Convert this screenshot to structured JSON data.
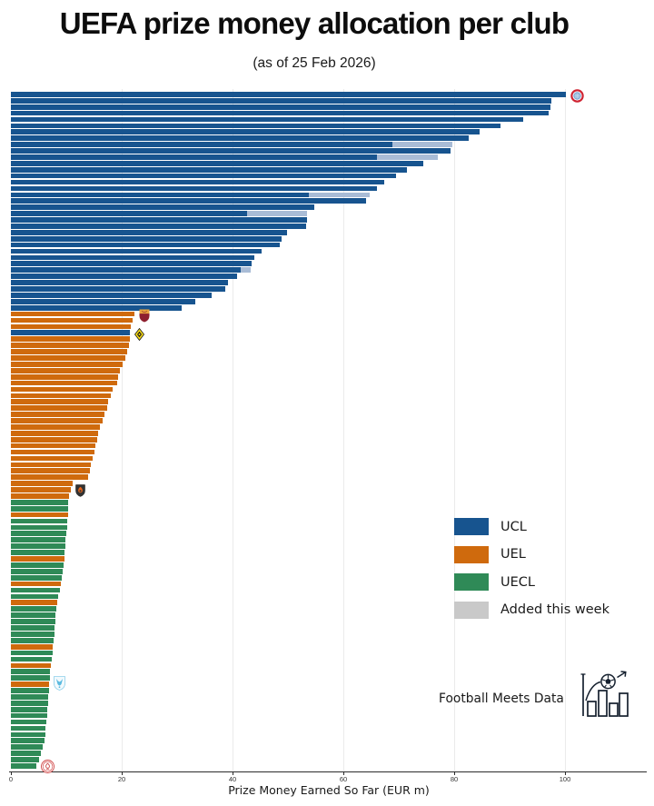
{
  "title": "UEFA prize money allocation per club",
  "subtitle": "(as of 25 Feb 2026)",
  "footer": {
    "brand": "Football Meets Data"
  },
  "legend": [
    {
      "label": "UCL",
      "color": "#17548f"
    },
    {
      "label": "UEL",
      "color": "#cf6a0d"
    },
    {
      "label": "UECL",
      "color": "#2f8a57"
    },
    {
      "label": "Added this week",
      "color": "#c9c9c9"
    }
  ],
  "chart_data": {
    "type": "bar",
    "orientation": "horizontal",
    "xlabel": "Prize Money Earned So Far (EUR m)",
    "xticks": [
      0,
      20,
      40,
      60,
      80,
      100
    ],
    "xlim": [
      0,
      114.8
    ],
    "grid": true,
    "colors": {
      "UCL": "#17548f",
      "UEL": "#cf6a0d",
      "UECL": "#2f8a57",
      "added_on_bar": "#a9bcd6",
      "added_legend": "#c9c9c9"
    },
    "bars": [
      {
        "v": 100.1,
        "s": "UCL",
        "crest": "bayern"
      },
      {
        "v": 97.6,
        "s": "UCL"
      },
      {
        "v": 97.3,
        "s": "UCL"
      },
      {
        "v": 97.1,
        "s": "UCL"
      },
      {
        "v": 92.5,
        "s": "UCL"
      },
      {
        "v": 88.3,
        "s": "UCL"
      },
      {
        "v": 84.6,
        "s": "UCL"
      },
      {
        "v": 82.6,
        "s": "UCL"
      },
      {
        "v": 79.6,
        "s": "UCL",
        "prev": 68.8
      },
      {
        "v": 79.3,
        "s": "UCL"
      },
      {
        "v": 77.0,
        "s": "UCL",
        "prev": 66.1
      },
      {
        "v": 74.4,
        "s": "UCL"
      },
      {
        "v": 71.4,
        "s": "UCL"
      },
      {
        "v": 69.5,
        "s": "UCL"
      },
      {
        "v": 67.4,
        "s": "UCL"
      },
      {
        "v": 66.1,
        "s": "UCL"
      },
      {
        "v": 64.7,
        "s": "UCL",
        "prev": 53.7
      },
      {
        "v": 64.1,
        "s": "UCL"
      },
      {
        "v": 54.8,
        "s": "UCL"
      },
      {
        "v": 53.5,
        "s": "UCL",
        "prev": 42.6
      },
      {
        "v": 53.4,
        "s": "UCL"
      },
      {
        "v": 53.3,
        "s": "UCL"
      },
      {
        "v": 49.8,
        "s": "UCL"
      },
      {
        "v": 48.9,
        "s": "UCL"
      },
      {
        "v": 48.5,
        "s": "UCL"
      },
      {
        "v": 45.3,
        "s": "UCL"
      },
      {
        "v": 44.0,
        "s": "UCL"
      },
      {
        "v": 43.4,
        "s": "UCL"
      },
      {
        "v": 43.3,
        "s": "UCL",
        "prev": 41.5
      },
      {
        "v": 40.8,
        "s": "UCL"
      },
      {
        "v": 39.1,
        "s": "UCL"
      },
      {
        "v": 38.7,
        "s": "UCL"
      },
      {
        "v": 36.2,
        "s": "UCL"
      },
      {
        "v": 33.2,
        "s": "UCL"
      },
      {
        "v": 30.8,
        "s": "UCL"
      },
      {
        "v": 22.3,
        "s": "UEL",
        "crest": "roma"
      },
      {
        "v": 22.0,
        "s": "UEL"
      },
      {
        "v": 21.7,
        "s": "UEL"
      },
      {
        "v": 21.5,
        "s": "UCL",
        "crest": "young-boys"
      },
      {
        "v": 21.4,
        "s": "UEL"
      },
      {
        "v": 21.3,
        "s": "UEL"
      },
      {
        "v": 21.0,
        "s": "UEL"
      },
      {
        "v": 20.7,
        "s": "UEL"
      },
      {
        "v": 20.2,
        "s": "UEL"
      },
      {
        "v": 19.6,
        "s": "UEL"
      },
      {
        "v": 19.4,
        "s": "UEL"
      },
      {
        "v": 19.2,
        "s": "UEL"
      },
      {
        "v": 18.4,
        "s": "UEL"
      },
      {
        "v": 18.0,
        "s": "UEL"
      },
      {
        "v": 17.6,
        "s": "UEL"
      },
      {
        "v": 17.3,
        "s": "UEL"
      },
      {
        "v": 16.9,
        "s": "UEL"
      },
      {
        "v": 16.5,
        "s": "UEL"
      },
      {
        "v": 16.1,
        "s": "UEL"
      },
      {
        "v": 15.8,
        "s": "UEL"
      },
      {
        "v": 15.5,
        "s": "UEL"
      },
      {
        "v": 15.2,
        "s": "UEL"
      },
      {
        "v": 15.0,
        "s": "UEL"
      },
      {
        "v": 14.7,
        "s": "UEL"
      },
      {
        "v": 14.5,
        "s": "UEL"
      },
      {
        "v": 14.2,
        "s": "UEL"
      },
      {
        "v": 14.0,
        "s": "UEL"
      },
      {
        "v": 11.2,
        "s": "UEL"
      },
      {
        "v": 10.8,
        "s": "UEL",
        "crest": "shakhtar"
      },
      {
        "v": 10.5,
        "s": "UEL"
      },
      {
        "v": 10.3,
        "s": "UECL"
      },
      {
        "v": 10.3,
        "s": "UECL"
      },
      {
        "v": 10.4,
        "s": "UEL"
      },
      {
        "v": 10.2,
        "s": "UECL"
      },
      {
        "v": 10.1,
        "s": "UECL"
      },
      {
        "v": 10.0,
        "s": "UECL"
      },
      {
        "v": 9.9,
        "s": "UECL"
      },
      {
        "v": 9.8,
        "s": "UECL"
      },
      {
        "v": 9.7,
        "s": "UECL"
      },
      {
        "v": 9.6,
        "s": "UEL"
      },
      {
        "v": 9.5,
        "s": "UECL"
      },
      {
        "v": 9.3,
        "s": "UECL"
      },
      {
        "v": 9.2,
        "s": "UECL"
      },
      {
        "v": 9.0,
        "s": "UEL"
      },
      {
        "v": 8.8,
        "s": "UECL"
      },
      {
        "v": 8.5,
        "s": "UECL"
      },
      {
        "v": 8.3,
        "s": "UEL"
      },
      {
        "v": 8.2,
        "s": "UECL"
      },
      {
        "v": 8.1,
        "s": "UECL"
      },
      {
        "v": 8.0,
        "s": "UECL"
      },
      {
        "v": 7.9,
        "s": "UECL"
      },
      {
        "v": 7.8,
        "s": "UECL"
      },
      {
        "v": 7.7,
        "s": "UECL"
      },
      {
        "v": 7.6,
        "s": "UEL"
      },
      {
        "v": 7.5,
        "s": "UECL"
      },
      {
        "v": 7.3,
        "s": "UECL"
      },
      {
        "v": 7.2,
        "s": "UEL"
      },
      {
        "v": 7.1,
        "s": "UECL"
      },
      {
        "v": 7.0,
        "s": "UECL"
      },
      {
        "v": 6.9,
        "s": "UEL",
        "crest": "light-blue"
      },
      {
        "v": 6.9,
        "s": "UECL"
      },
      {
        "v": 6.8,
        "s": "UECL"
      },
      {
        "v": 6.7,
        "s": "UECL"
      },
      {
        "v": 6.6,
        "s": "UECL"
      },
      {
        "v": 6.5,
        "s": "UECL"
      },
      {
        "v": 6.4,
        "s": "UECL"
      },
      {
        "v": 6.3,
        "s": "UECL"
      },
      {
        "v": 6.2,
        "s": "UECL"
      },
      {
        "v": 6.0,
        "s": "UECL"
      },
      {
        "v": 5.7,
        "s": "UECL"
      },
      {
        "v": 5.4,
        "s": "UECL"
      },
      {
        "v": 5.0,
        "s": "UECL"
      },
      {
        "v": 4.6,
        "s": "UECL",
        "crest": "red-white"
      }
    ]
  }
}
